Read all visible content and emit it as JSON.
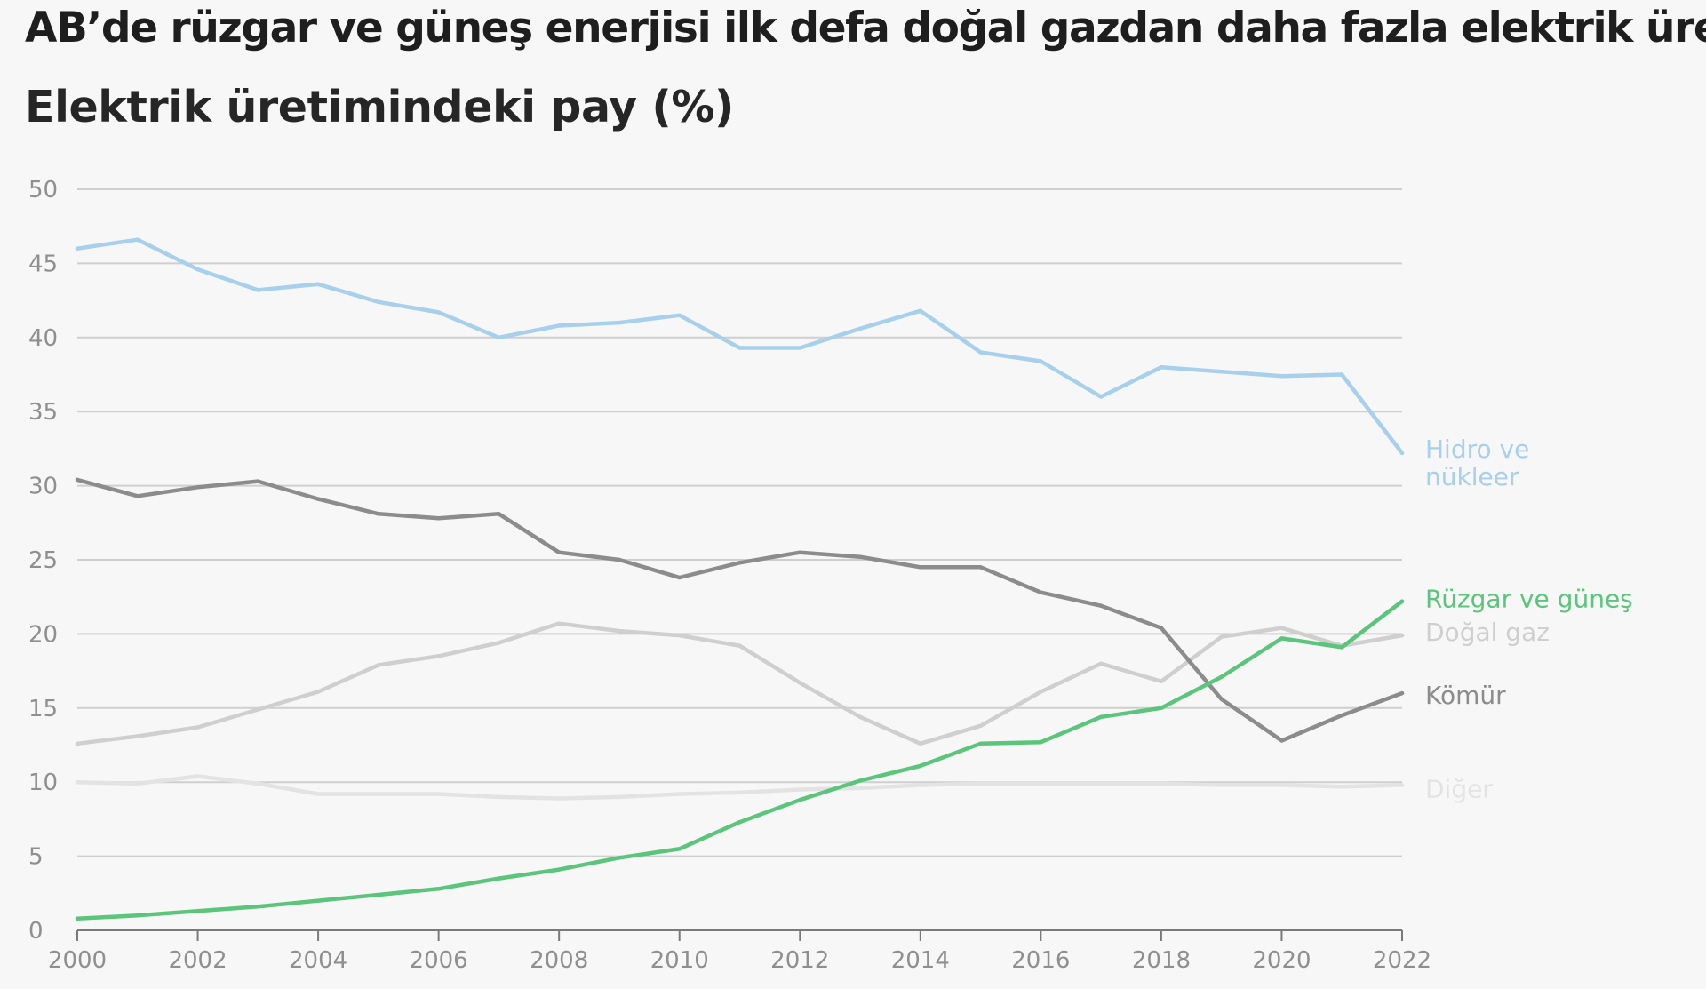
{
  "chart_data": {
    "type": "line",
    "title": "AB’de rüzgar ve güneş enerjisi ilk defa doğal gazdan daha fazla elektrik üretti",
    "subtitle": "Elektrik üretimindeki pay (%)",
    "xlabel": "",
    "ylabel": "",
    "xlim": [
      2000,
      2022
    ],
    "ylim": [
      0,
      50
    ],
    "x_ticks": [
      "2000",
      "2002",
      "2004",
      "2006",
      "2008",
      "2010",
      "2012",
      "2014",
      "2016",
      "2018",
      "2020",
      "2022"
    ],
    "y_ticks": [
      "0",
      "5",
      "10",
      "15",
      "20",
      "25",
      "30",
      "35",
      "40",
      "45",
      "50"
    ],
    "grid": "horizontal",
    "legend": "direct labels at right end of lines",
    "x": [
      2000,
      2001,
      2002,
      2003,
      2004,
      2005,
      2006,
      2007,
      2008,
      2009,
      2010,
      2011,
      2012,
      2013,
      2014,
      2015,
      2016,
      2017,
      2018,
      2019,
      2020,
      2021,
      2022
    ],
    "series": [
      {
        "name": "Diğer",
        "label_lines": [
          "Diğer"
        ],
        "color": "#e3e3e3",
        "values": [
          10.0,
          9.9,
          10.4,
          9.9,
          9.2,
          9.2,
          9.2,
          9.0,
          8.9,
          9.0,
          9.2,
          9.3,
          9.5,
          9.6,
          9.8,
          9.9,
          9.9,
          9.9,
          9.9,
          9.8,
          9.8,
          9.7,
          9.8
        ]
      },
      {
        "name": "Doğal gaz",
        "label_lines": [
          "Doğal gaz"
        ],
        "color": "#cfcfcf",
        "values": [
          12.6,
          13.1,
          13.7,
          14.9,
          16.1,
          17.9,
          18.5,
          19.4,
          20.7,
          20.2,
          19.9,
          19.2,
          16.7,
          14.4,
          12.6,
          13.8,
          16.1,
          18.0,
          16.8,
          19.8,
          20.4,
          19.2,
          19.9
        ]
      },
      {
        "name": "Kömür",
        "label_lines": [
          "Kömür"
        ],
        "color": "#8c8c8c",
        "values": [
          30.4,
          29.3,
          29.9,
          30.3,
          29.1,
          28.1,
          27.8,
          28.1,
          25.5,
          25.0,
          23.8,
          24.8,
          25.5,
          25.2,
          24.5,
          24.5,
          22.8,
          21.9,
          20.4,
          15.6,
          12.8,
          14.5,
          16.0
        ]
      },
      {
        "name": "Hidro ve nükleer",
        "label_lines": [
          "Hidro ve",
          "nükleer"
        ],
        "color": "#a7d0ec",
        "values": [
          46.0,
          46.6,
          44.6,
          43.2,
          43.6,
          42.4,
          41.7,
          40.0,
          40.8,
          41.0,
          41.5,
          39.3,
          39.3,
          40.6,
          41.8,
          39.0,
          38.4,
          36.0,
          38.0,
          37.7,
          37.4,
          37.5,
          32.2
        ]
      },
      {
        "name": "Rüzgar ve güneş",
        "label_lines": [
          "Rüzgar ve güneş"
        ],
        "color": "#5cc57c",
        "values": [
          0.8,
          1.0,
          1.3,
          1.6,
          2.0,
          2.4,
          2.8,
          3.5,
          4.1,
          4.9,
          5.5,
          7.3,
          8.8,
          10.1,
          11.1,
          12.6,
          12.7,
          14.4,
          15.0,
          17.1,
          19.7,
          19.1,
          22.2
        ]
      }
    ]
  }
}
